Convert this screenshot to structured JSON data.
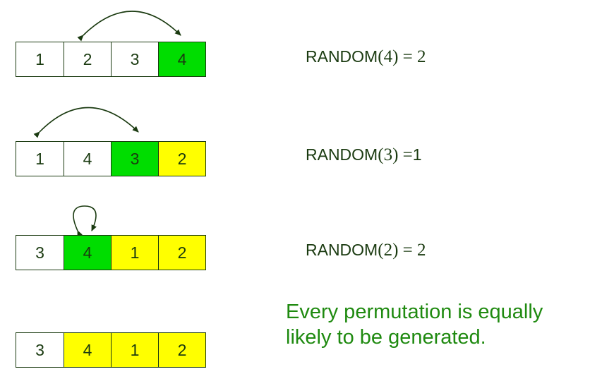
{
  "colors": {
    "ink": "#1a3a10",
    "green": "#00dd00",
    "yellow": "#ffff00",
    "note": "#1f8a10"
  },
  "steps": [
    {
      "cells": [
        {
          "value": "1",
          "color": "white"
        },
        {
          "value": "2",
          "color": "white"
        },
        {
          "value": "3",
          "color": "white"
        },
        {
          "value": "4",
          "color": "green"
        }
      ],
      "equation": {
        "fn": "RANDOM",
        "arg": "4",
        "sep": " = ",
        "result": "2"
      }
    },
    {
      "cells": [
        {
          "value": "1",
          "color": "white"
        },
        {
          "value": "4",
          "color": "white"
        },
        {
          "value": "3",
          "color": "green"
        },
        {
          "value": "2",
          "color": "yellow"
        }
      ],
      "equation": {
        "fn": "RANDOM",
        "arg": "3",
        "sep": " =",
        "result": "1"
      }
    },
    {
      "cells": [
        {
          "value": "3",
          "color": "white"
        },
        {
          "value": "4",
          "color": "green"
        },
        {
          "value": "1",
          "color": "yellow"
        },
        {
          "value": "2",
          "color": "yellow"
        }
      ],
      "equation": {
        "fn": "RANDOM",
        "arg": "2",
        "sep": " = ",
        "result": "2"
      }
    },
    {
      "cells": [
        {
          "value": "3",
          "color": "white"
        },
        {
          "value": "4",
          "color": "yellow"
        },
        {
          "value": "1",
          "color": "yellow"
        },
        {
          "value": "2",
          "color": "yellow"
        }
      ]
    }
  ],
  "note": "Every permutation is equally likely to be generated."
}
